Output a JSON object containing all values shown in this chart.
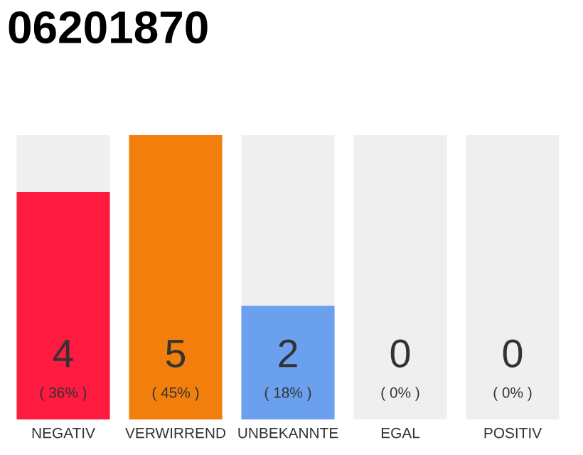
{
  "chart_data": {
    "type": "bar",
    "title": "06201870",
    "categories": [
      "NEGATIV",
      "VERWIRREND",
      "UNBEKANNTE",
      "EGAL",
      "POSITIV"
    ],
    "stacked": true,
    "series": [
      {
        "colors": [
          "#ff1a40",
          "#f27f0c",
          "#6aa0ee",
          "#efefef",
          "#efefef"
        ],
        "values": [
          4,
          5,
          2,
          0,
          0
        ],
        "value_labels": [
          "4",
          "5",
          "2",
          null,
          null
        ]
      },
      {
        "color": "#efefef",
        "values": [
          1,
          0,
          3,
          5,
          5
        ]
      }
    ],
    "annotations": [
      "( 36% )",
      "( 45% )",
      "( 18% )",
      "( 0% )",
      "( 0% )",
      "0",
      "0"
    ],
    "legend": false
  }
}
